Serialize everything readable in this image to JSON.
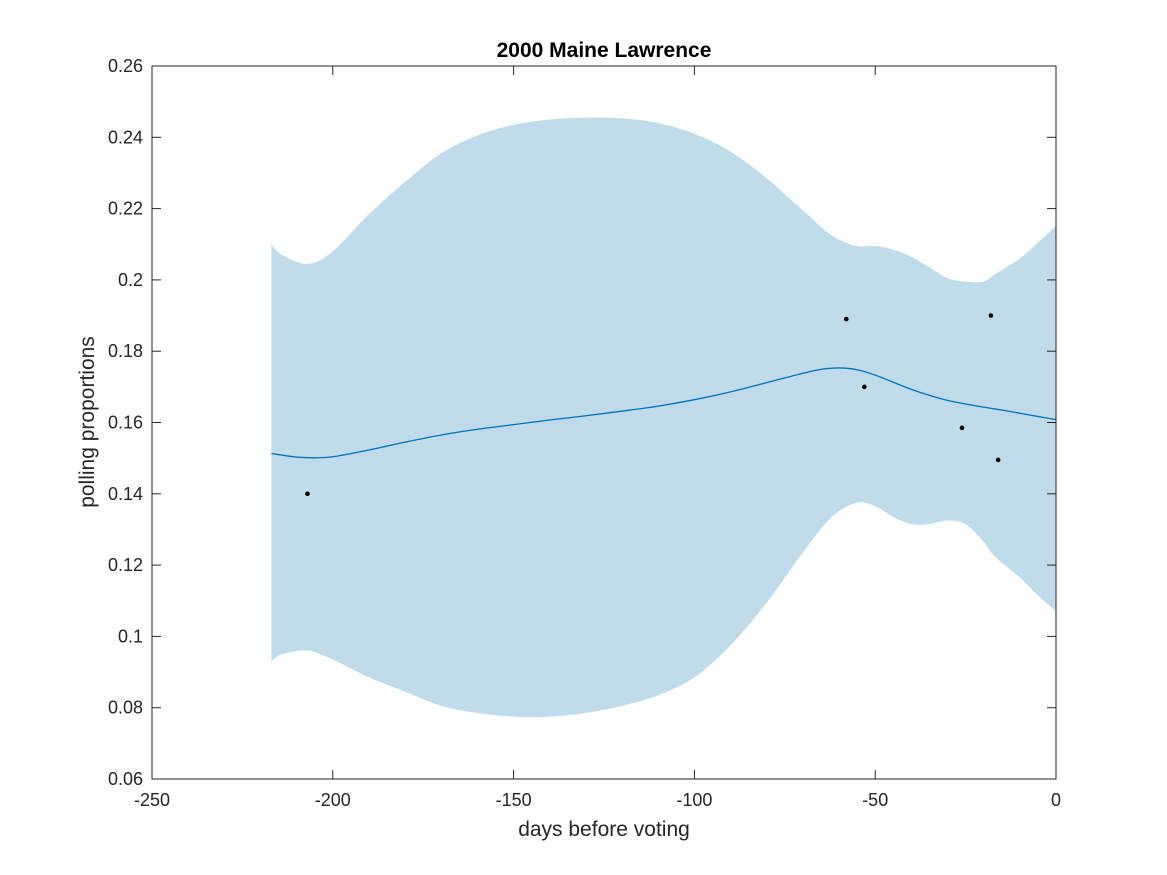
{
  "chart_data": {
    "type": "line",
    "title": "2000 Maine Lawrence",
    "xlabel": "days before voting",
    "ylabel": "polling proportions",
    "xlim": [
      -250,
      0
    ],
    "ylim": [
      0.06,
      0.26
    ],
    "xticks": [
      -250,
      -200,
      -150,
      -100,
      -50,
      0
    ],
    "xtick_labels": [
      "-250",
      "-200",
      "-150",
      "-100",
      "-50",
      "0"
    ],
    "yticks": [
      0.06,
      0.08,
      0.1,
      0.12,
      0.14,
      0.16,
      0.18,
      0.2,
      0.22,
      0.24,
      0.26
    ],
    "ytick_labels": [
      "0.06",
      "0.08",
      "0.1",
      "0.12",
      "0.14",
      "0.16",
      "0.18",
      "0.2",
      "0.22",
      "0.24",
      "0.26"
    ],
    "grid": false,
    "colors": {
      "band": "#c0dcea",
      "line": "#0072bd",
      "points": "#000000",
      "axes": "#262626"
    },
    "series": [
      {
        "type": "band",
        "x": [
          -217,
          -214,
          -207,
          -200,
          -190,
          -180,
          -170,
          -160,
          -150,
          -140,
          -130,
          -120,
          -110,
          -100,
          -90,
          -80,
          -70,
          -62,
          -55,
          -50,
          -45,
          -40,
          -35,
          -30,
          -25,
          -20,
          -17,
          -10,
          -5,
          0
        ],
        "upper": [
          0.21,
          0.207,
          0.2045,
          0.208,
          0.2185,
          0.2275,
          0.2355,
          0.2405,
          0.2435,
          0.245,
          0.2455,
          0.2453,
          0.244,
          0.241,
          0.236,
          0.2285,
          0.2195,
          0.2125,
          0.2095,
          0.2095,
          0.2085,
          0.2065,
          0.2035,
          0.2005,
          0.1995,
          0.1995,
          0.2015,
          0.206,
          0.2105,
          0.2152
        ],
        "lower": [
          0.093,
          0.095,
          0.096,
          0.0935,
          0.0885,
          0.0845,
          0.0805,
          0.0785,
          0.0775,
          0.0775,
          0.0785,
          0.0805,
          0.0835,
          0.0885,
          0.0975,
          0.1095,
          0.1235,
          0.1335,
          0.1375,
          0.1365,
          0.1335,
          0.1315,
          0.1315,
          0.1325,
          0.1315,
          0.1265,
          0.1225,
          0.1165,
          0.1115,
          0.107
        ]
      },
      {
        "type": "line",
        "x": [
          -217,
          -210,
          -205,
          -200,
          -190,
          -180,
          -170,
          -160,
          -150,
          -140,
          -130,
          -120,
          -110,
          -100,
          -90,
          -80,
          -70,
          -65,
          -60,
          -55,
          -50,
          -45,
          -40,
          -35,
          -30,
          -25,
          -20,
          -15,
          -10,
          -5,
          0
        ],
        "y": [
          0.1513,
          0.1503,
          0.1501,
          0.1504,
          0.1523,
          0.1545,
          0.1565,
          0.1581,
          0.1594,
          0.1607,
          0.1619,
          0.1632,
          0.1646,
          0.1664,
          0.1686,
          0.1712,
          0.1738,
          0.1749,
          0.1753,
          0.1748,
          0.1733,
          0.1713,
          0.1693,
          0.1676,
          0.1662,
          0.1652,
          0.1643,
          0.1635,
          0.1626,
          0.1617,
          0.1608
        ]
      },
      {
        "type": "scatter",
        "x": [
          -207,
          -58,
          -53,
          -26,
          -18,
          -16
        ],
        "y": [
          0.14,
          0.189,
          0.17,
          0.1585,
          0.19,
          0.1495
        ]
      }
    ]
  }
}
